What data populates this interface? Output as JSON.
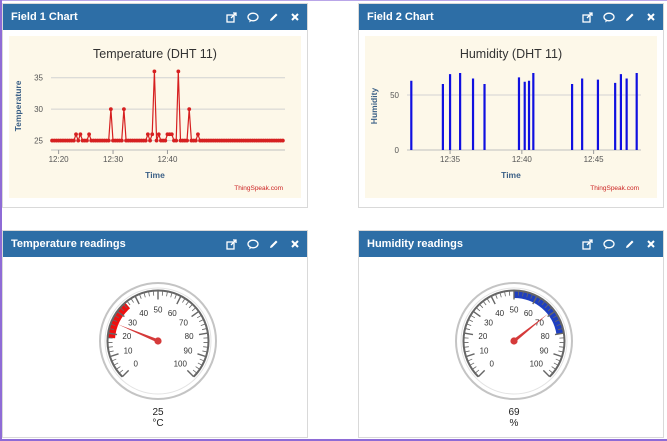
{
  "widgets": [
    {
      "title": "Field 1 Chart"
    },
    {
      "title": "Field 2 Chart"
    },
    {
      "title": "Temperature readings"
    },
    {
      "title": "Humidity readings"
    }
  ],
  "tools": [
    "open-external-icon",
    "comment-icon",
    "edit-icon",
    "close-icon"
  ],
  "chart_data": [
    {
      "type": "line",
      "title": "Temperature (DHT 11)",
      "xlabel": "Time",
      "ylabel": "Temperature",
      "credit": "ThingSpeak.com",
      "color": "#d62020",
      "xlim": [
        12.0,
        55.0
      ],
      "ylim": [
        23.5,
        37.5
      ],
      "yticks": [
        25,
        30,
        35
      ],
      "xticks": [
        {
          "t": 13.4,
          "label": "12:20"
        },
        {
          "t": 23.4,
          "label": "12:30"
        },
        {
          "t": 33.4,
          "label": "12:40"
        }
      ],
      "x": [
        12.2,
        12.6,
        13.0,
        13.4,
        13.8,
        14.2,
        14.6,
        15.0,
        15.4,
        15.8,
        16.2,
        16.6,
        17.0,
        17.4,
        17.8,
        18.2,
        18.6,
        19.0,
        19.4,
        19.8,
        20.2,
        20.6,
        21.0,
        21.4,
        21.8,
        22.2,
        22.6,
        23.0,
        23.4,
        23.8,
        24.2,
        24.6,
        25.0,
        25.4,
        25.8,
        26.2,
        26.6,
        27.0,
        27.4,
        27.8,
        28.2,
        28.6,
        29.0,
        29.4,
        29.8,
        30.2,
        30.6,
        31.0,
        31.4,
        31.8,
        32.2,
        32.6,
        33.0,
        33.4,
        33.8,
        34.2,
        34.6,
        35.0,
        35.4,
        35.8,
        36.2,
        36.6,
        37.0,
        37.4,
        37.8,
        38.2,
        38.6,
        39.0,
        39.4,
        39.8,
        40.2,
        40.6,
        41.0,
        41.4,
        41.8,
        42.2,
        42.6,
        43.0,
        43.4,
        43.8,
        44.2,
        44.6,
        45.0,
        45.4,
        45.8,
        46.2,
        46.6,
        47.0,
        47.4,
        47.8,
        48.2,
        48.6,
        49.0,
        49.4,
        49.8,
        50.2,
        50.6,
        51.0,
        51.4,
        51.8,
        52.2,
        52.6,
        53.0,
        53.4,
        53.8,
        54.2,
        54.6
      ],
      "values": [
        25,
        25,
        25,
        25,
        25,
        25,
        25,
        25,
        25,
        25,
        25,
        26,
        25,
        26,
        25,
        25,
        25,
        26,
        25,
        25,
        25,
        25,
        25,
        25,
        25,
        25,
        25,
        30,
        25,
        25,
        25,
        25,
        25,
        30,
        25,
        25,
        25,
        25,
        25,
        25,
        25,
        25,
        25,
        25,
        26,
        25,
        26,
        36,
        25,
        26,
        25,
        25,
        25,
        26,
        26,
        26,
        25,
        25,
        36,
        25,
        25,
        25,
        25,
        30,
        25,
        25,
        25,
        26,
        25,
        25,
        25,
        25,
        25,
        25,
        25,
        25,
        25,
        25,
        25,
        25,
        25,
        25,
        25,
        25,
        25,
        25,
        25,
        25,
        25,
        25,
        25,
        25,
        25,
        25,
        25,
        25,
        25,
        25,
        25,
        25,
        25,
        25,
        25,
        25,
        25,
        25,
        25
      ]
    },
    {
      "type": "bar",
      "title": "Humidity (DHT 11)",
      "xlabel": "Time",
      "ylabel": "Humidity",
      "credit": "ThingSpeak.com",
      "color": "#1010e0",
      "xlim": [
        32.0,
        48.3
      ],
      "ylim": [
        0,
        80
      ],
      "yticks": [
        0,
        50
      ],
      "xticks": [
        {
          "t": 35.0,
          "label": "12:35"
        },
        {
          "t": 40.0,
          "label": "12:40"
        },
        {
          "t": 45.0,
          "label": "12:45"
        }
      ],
      "x": [
        32.3,
        34.5,
        35.0,
        35.7,
        36.6,
        37.4,
        39.8,
        40.2,
        40.5,
        40.8,
        43.5,
        44.2,
        45.3,
        46.5,
        46.9,
        47.3,
        48.0
      ],
      "values": [
        63,
        60,
        69,
        70,
        65,
        60,
        66,
        62,
        63,
        70,
        60,
        65,
        64,
        61,
        69,
        65,
        70
      ]
    }
  ],
  "gauges": [
    {
      "name": "temperature",
      "value": 25,
      "value_text": "25",
      "unit": "°C",
      "min": 0,
      "max": 100,
      "band": [
        18,
        35
      ],
      "band_color": "#ee1111",
      "needle_color": "#d53a3a",
      "ticks": [
        "0",
        "10",
        "20",
        "30",
        "40",
        "50",
        "60",
        "70",
        "80",
        "90",
        "100"
      ]
    },
    {
      "name": "humidity",
      "value": 69,
      "value_text": "69",
      "unit": "%",
      "min": 0,
      "max": 100,
      "band": [
        50,
        80
      ],
      "band_color": "#1f3fbf",
      "needle_color": "#d53a3a",
      "ticks": [
        "0",
        "10",
        "20",
        "30",
        "40",
        "50",
        "60",
        "70",
        "80",
        "90",
        "100"
      ]
    }
  ]
}
